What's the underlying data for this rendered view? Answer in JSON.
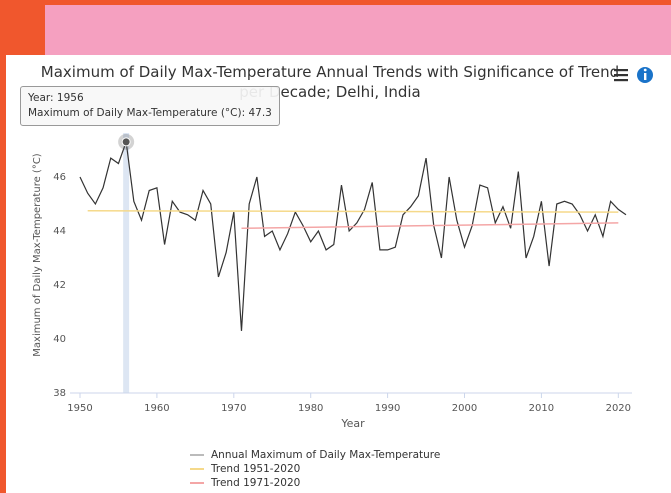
{
  "chart_data": {
    "type": "line",
    "title": "Maximum of Daily Max-Temperature Annual Trends with Significance of Trend per Decade; Delhi, India",
    "x_label": "Year",
    "y_label": "Maximum of Daily Max-Temperature (°C)",
    "xlim": [
      1950,
      2021
    ],
    "xticks": [
      1950,
      1960,
      1970,
      1980,
      1990,
      2000,
      2010,
      2020
    ],
    "ylim": [
      38,
      48
    ],
    "yticks": [
      38,
      40,
      42,
      44,
      46
    ],
    "grid": false,
    "highlighted_x": 1956,
    "tooltip": [
      "Year: 1956",
      "Maximum of Daily Max-Temperature (°C): 47.3"
    ],
    "series": [
      {
        "name": "Annual Maximum of Daily Max-Temperature",
        "color": "#333333",
        "x": [
          1950,
          1951,
          1952,
          1953,
          1954,
          1955,
          1956,
          1957,
          1958,
          1959,
          1960,
          1961,
          1962,
          1963,
          1964,
          1965,
          1966,
          1967,
          1968,
          1969,
          1970,
          1971,
          1972,
          1973,
          1974,
          1975,
          1976,
          1977,
          1978,
          1979,
          1980,
          1981,
          1982,
          1983,
          1984,
          1985,
          1986,
          1987,
          1988,
          1989,
          1990,
          1991,
          1992,
          1993,
          1994,
          1995,
          1996,
          1997,
          1998,
          1999,
          2000,
          2001,
          2002,
          2003,
          2004,
          2005,
          2006,
          2007,
          2008,
          2009,
          2010,
          2011,
          2012,
          2013,
          2014,
          2015,
          2016,
          2017,
          2018,
          2019,
          2020,
          2021
        ],
        "values": [
          46.0,
          45.4,
          45.0,
          45.6,
          46.7,
          46.5,
          47.3,
          45.1,
          44.4,
          45.5,
          45.6,
          43.5,
          45.1,
          44.7,
          44.6,
          44.4,
          45.5,
          45.0,
          42.3,
          43.2,
          44.7,
          40.3,
          45.0,
          46.0,
          43.8,
          44.0,
          43.3,
          43.9,
          44.7,
          44.2,
          43.6,
          44.0,
          43.3,
          43.5,
          45.7,
          44.0,
          44.3,
          44.8,
          45.8,
          43.3,
          43.3,
          43.4,
          44.6,
          44.9,
          45.3,
          46.7,
          44.2,
          43.0,
          46.0,
          44.4,
          43.4,
          44.2,
          45.7,
          45.6,
          44.3,
          44.9,
          44.1,
          46.2,
          43.0,
          43.8,
          45.1,
          42.7,
          45.0,
          45.1,
          45.0,
          44.6,
          44.0,
          44.6,
          43.8,
          45.1,
          44.8,
          44.6
        ]
      },
      {
        "name": "Trend 1951-2020",
        "color": "#f5d98a",
        "x": [
          1951,
          2020
        ],
        "values": [
          44.75,
          44.7
        ]
      },
      {
        "name": "Trend 1971-2020",
        "color": "#f4a6a6",
        "x": [
          1971,
          2020
        ],
        "values": [
          44.1,
          44.3
        ]
      }
    ]
  }
}
